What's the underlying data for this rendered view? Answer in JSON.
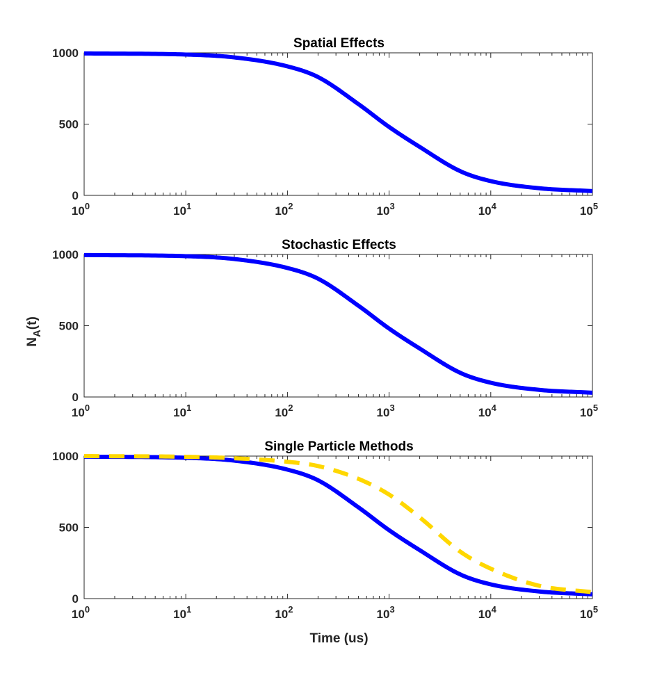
{
  "chart_data": [
    {
      "type": "line",
      "title": "Spatial Effects",
      "xscale": "log",
      "xlim": [
        1,
        100000
      ],
      "ylim": [
        0,
        1000
      ],
      "yticks": [
        0,
        500,
        1000
      ],
      "xtick_exponents": [
        "0",
        "1",
        "2",
        "3",
        "4",
        "5"
      ],
      "grid": false,
      "series": [
        {
          "color": "#0000ff",
          "style": "solid",
          "x": [
            1,
            10,
            30,
            100,
            200,
            500,
            1000,
            2000,
            5000,
            10000,
            30000,
            100000
          ],
          "y": [
            996,
            988,
            968,
            905,
            830,
            640,
            480,
            340,
            170,
            100,
            50,
            30
          ]
        }
      ]
    },
    {
      "type": "line",
      "title": "Stochastic Effects",
      "ylabel_base": "N",
      "ylabel_sub": "A",
      "ylabel_rest": "(t)",
      "xscale": "log",
      "xlim": [
        1,
        100000
      ],
      "ylim": [
        0,
        1000
      ],
      "yticks": [
        0,
        500,
        1000
      ],
      "xtick_exponents": [
        "0",
        "1",
        "2",
        "3",
        "4",
        "5"
      ],
      "grid": false,
      "series": [
        {
          "color": "#0000ff",
          "style": "solid",
          "x": [
            1,
            10,
            30,
            100,
            200,
            500,
            1000,
            2000,
            5000,
            10000,
            30000,
            100000
          ],
          "y": [
            996,
            988,
            968,
            905,
            830,
            640,
            480,
            340,
            170,
            100,
            50,
            30
          ]
        }
      ]
    },
    {
      "type": "line",
      "title": "Single Particle Methods",
      "xlabel": "Time (us)",
      "xscale": "log",
      "xlim": [
        1,
        100000
      ],
      "ylim": [
        0,
        1000
      ],
      "yticks": [
        0,
        500,
        1000
      ],
      "xtick_exponents": [
        "0",
        "1",
        "2",
        "3",
        "4",
        "5"
      ],
      "grid": false,
      "series": [
        {
          "color": "#0000ff",
          "style": "solid",
          "x": [
            1,
            10,
            30,
            100,
            200,
            500,
            1000,
            2000,
            5000,
            10000,
            30000,
            100000
          ],
          "y": [
            996,
            988,
            968,
            905,
            830,
            640,
            480,
            340,
            170,
            100,
            50,
            30
          ]
        },
        {
          "color": "#ffd700",
          "style": "dashed",
          "x": [
            1,
            10,
            30,
            100,
            200,
            500,
            1000,
            2000,
            5000,
            10000,
            30000,
            100000
          ],
          "y": [
            1000,
            995,
            985,
            960,
            930,
            840,
            730,
            570,
            330,
            210,
            90,
            45
          ]
        }
      ]
    }
  ]
}
